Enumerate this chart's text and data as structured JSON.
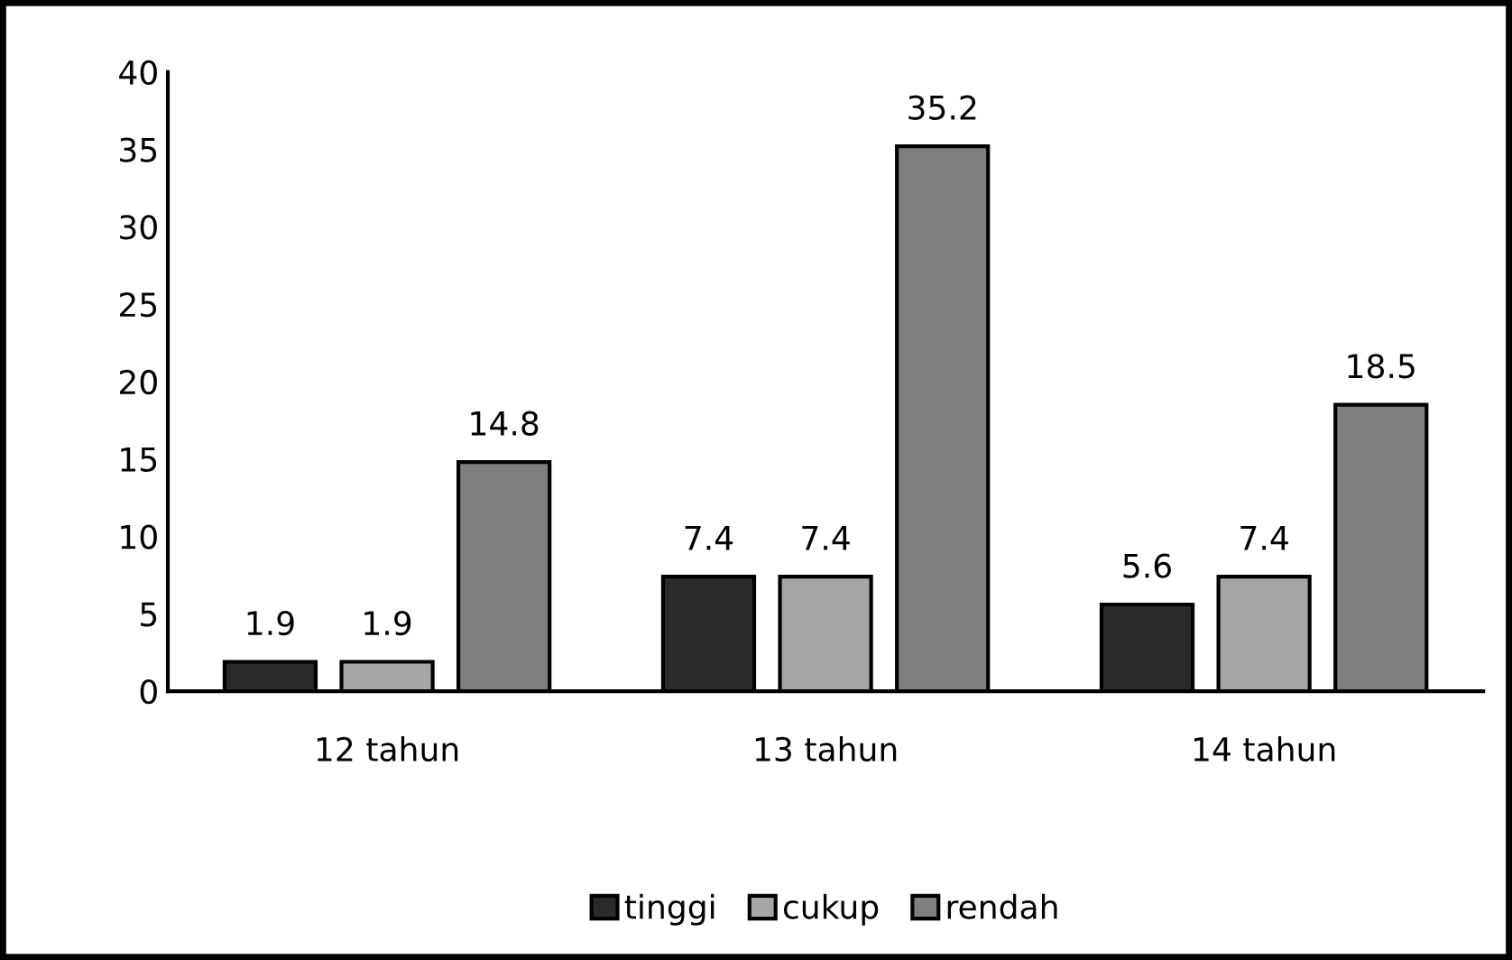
{
  "chart_data": {
    "type": "bar",
    "categories": [
      "12 tahun",
      "13 tahun",
      "14 tahun"
    ],
    "series": [
      {
        "name": "tinggi",
        "color": "#2b2b2b",
        "values": [
          1.9,
          7.4,
          5.6
        ]
      },
      {
        "name": "cukup",
        "color": "#a6a6a6",
        "values": [
          1.9,
          7.4,
          7.4
        ]
      },
      {
        "name": "rendah",
        "color": "#7f7f7f",
        "values": [
          14.8,
          35.2,
          18.5
        ]
      }
    ],
    "ylim": [
      0,
      40
    ],
    "yticks": [
      0,
      5,
      10,
      15,
      20,
      25,
      30,
      35,
      40
    ],
    "grid": false,
    "legend": "bottom",
    "data_labels": true
  }
}
